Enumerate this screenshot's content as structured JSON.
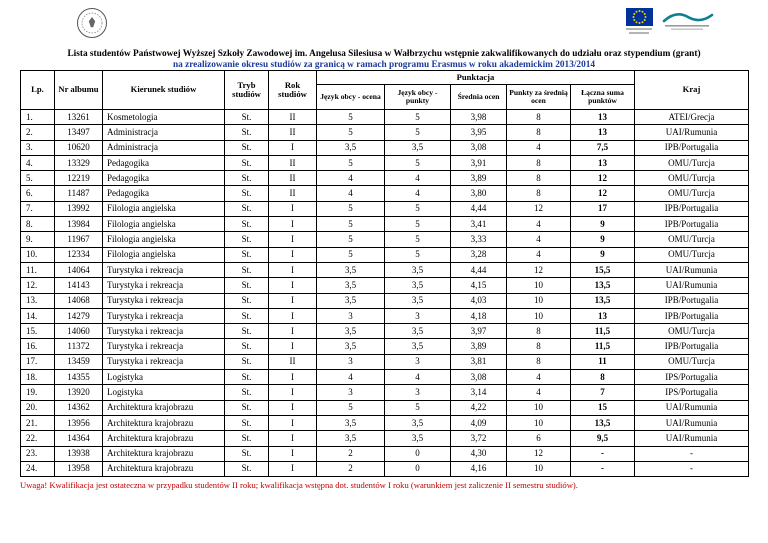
{
  "header": {
    "title_line1": "Lista studentów Państwowej Wyższej Szkoły Zawodowej im. Angelusa Silesiusa w Wałbrzychu wstępnie zakwalifikowanych do udziału oraz stypendium (grant)",
    "title_line2": "na zrealizowanie okresu studiów za granicą w ramach programu Erasmus w roku akademickim 2013/2014"
  },
  "icons": {
    "university_seal": "seal-logo",
    "eu_flag": "eu-flag-logo",
    "partner": "partner-logo"
  },
  "colors": {
    "title_accent": "#1a3a9c",
    "note": "#c00000",
    "eu_blue": "#003399",
    "eu_star_yellow": "#ffcc00"
  },
  "table": {
    "col_headers": {
      "lp": "Lp.",
      "nr_albumu": "Nr albumu",
      "kierunek": "Kierunek studiów",
      "tryb": "Tryb studiów",
      "rok": "Rok studiów",
      "punktacja": "Punktacja",
      "jezyk_ocena": "Język obcy - ocena",
      "jezyk_punkty": "Język obcy - punkty",
      "srednia": "Średnia ocen",
      "punkty_srednia": "Punkty za średnią ocen",
      "laczna": "Łączna suma punktów",
      "kraj": "Kraj"
    },
    "rows": [
      [
        "1.",
        "13261",
        "Kosmetologia",
        "St.",
        "II",
        "5",
        "5",
        "3,98",
        "8",
        "13",
        "ATEI/Grecja"
      ],
      [
        "2.",
        "13497",
        "Administracja",
        "St.",
        "II",
        "5",
        "5",
        "3,95",
        "8",
        "13",
        "UAI/Rumunia"
      ],
      [
        "3.",
        "10620",
        "Administracja",
        "St.",
        "I",
        "3,5",
        "3,5",
        "3,08",
        "4",
        "7,5",
        "IPB/Portugalia"
      ],
      [
        "4.",
        "13329",
        "Pedagogika",
        "St.",
        "II",
        "5",
        "5",
        "3,91",
        "8",
        "13",
        "OMU/Turcja"
      ],
      [
        "5.",
        "12219",
        "Pedagogika",
        "St.",
        "II",
        "4",
        "4",
        "3,89",
        "8",
        "12",
        "OMU/Turcja"
      ],
      [
        "6.",
        "11487",
        "Pedagogika",
        "St.",
        "II",
        "4",
        "4",
        "3,80",
        "8",
        "12",
        "OMU/Turcja"
      ],
      [
        "7.",
        "13992",
        "Filologia angielska",
        "St.",
        "I",
        "5",
        "5",
        "4,44",
        "12",
        "17",
        "IPB/Portugalia"
      ],
      [
        "8.",
        "13984",
        "Filologia angielska",
        "St.",
        "I",
        "5",
        "5",
        "3,41",
        "4",
        "9",
        "IPB/Portugalia"
      ],
      [
        "9.",
        "11967",
        "Filologia angielska",
        "St.",
        "I",
        "5",
        "5",
        "3,33",
        "4",
        "9",
        "OMU/Turcja"
      ],
      [
        "10.",
        "12334",
        "Filologia angielska",
        "St.",
        "I",
        "5",
        "5",
        "3,28",
        "4",
        "9",
        "OMU/Turcja"
      ],
      [
        "11.",
        "14064",
        "Turystyka i rekreacja",
        "St.",
        "I",
        "3,5",
        "3,5",
        "4,44",
        "12",
        "15,5",
        "UAI/Rumunia"
      ],
      [
        "12.",
        "14143",
        "Turystyka i rekreacja",
        "St.",
        "I",
        "3,5",
        "3,5",
        "4,15",
        "10",
        "13,5",
        "UAI/Rumunia"
      ],
      [
        "13.",
        "14068",
        "Turystyka i rekreacja",
        "St.",
        "I",
        "3,5",
        "3,5",
        "4,03",
        "10",
        "13,5",
        "IPB/Portugalia"
      ],
      [
        "14.",
        "14279",
        "Turystyka i rekreacja",
        "St.",
        "I",
        "3",
        "3",
        "4,18",
        "10",
        "13",
        "IPB/Portugalia"
      ],
      [
        "15.",
        "14060",
        "Turystyka i rekreacja",
        "St.",
        "I",
        "3,5",
        "3,5",
        "3,97",
        "8",
        "11,5",
        "OMU/Turcja"
      ],
      [
        "16.",
        "11372",
        "Turystyka i rekreacja",
        "St.",
        "I",
        "3,5",
        "3,5",
        "3,89",
        "8",
        "11,5",
        "IPB/Portugalia"
      ],
      [
        "17.",
        "13459",
        "Turystyka i rekreacja",
        "St.",
        "II",
        "3",
        "3",
        "3,81",
        "8",
        "11",
        "OMU/Turcja"
      ],
      [
        "18.",
        "14355",
        "Logistyka",
        "St.",
        "I",
        "4",
        "4",
        "3,08",
        "4",
        "8",
        "IPS/Portugalia"
      ],
      [
        "19.",
        "13920",
        "Logistyka",
        "St.",
        "I",
        "3",
        "3",
        "3,14",
        "4",
        "7",
        "IPS/Portugalia"
      ],
      [
        "20.",
        "14362",
        "Architektura krajobrazu",
        "St.",
        "I",
        "5",
        "5",
        "4,22",
        "10",
        "15",
        "UAI/Rumunia"
      ],
      [
        "21.",
        "13956",
        "Architektura krajobrazu",
        "St.",
        "I",
        "3,5",
        "3,5",
        "4,09",
        "10",
        "13,5",
        "UAI/Rumunia"
      ],
      [
        "22.",
        "14364",
        "Architektura krajobrazu",
        "St.",
        "I",
        "3,5",
        "3,5",
        "3,72",
        "6",
        "9,5",
        "UAI/Rumunia"
      ],
      [
        "23.",
        "13938",
        "Architektura krajobrazu",
        "St.",
        "I",
        "2",
        "0",
        "4,30",
        "12",
        "-",
        "-"
      ],
      [
        "24.",
        "13958",
        "Architektura krajobrazu",
        "St.",
        "I",
        "2",
        "0",
        "4,16",
        "10",
        "-",
        "-"
      ]
    ]
  },
  "footer": {
    "note": "Uwaga! Kwalifikacja jest ostateczna w przypadku studentów II roku; kwalifikacja wstępna dot. studentów I roku (warunkiem jest zaliczenie  II semestru studiów)."
  }
}
